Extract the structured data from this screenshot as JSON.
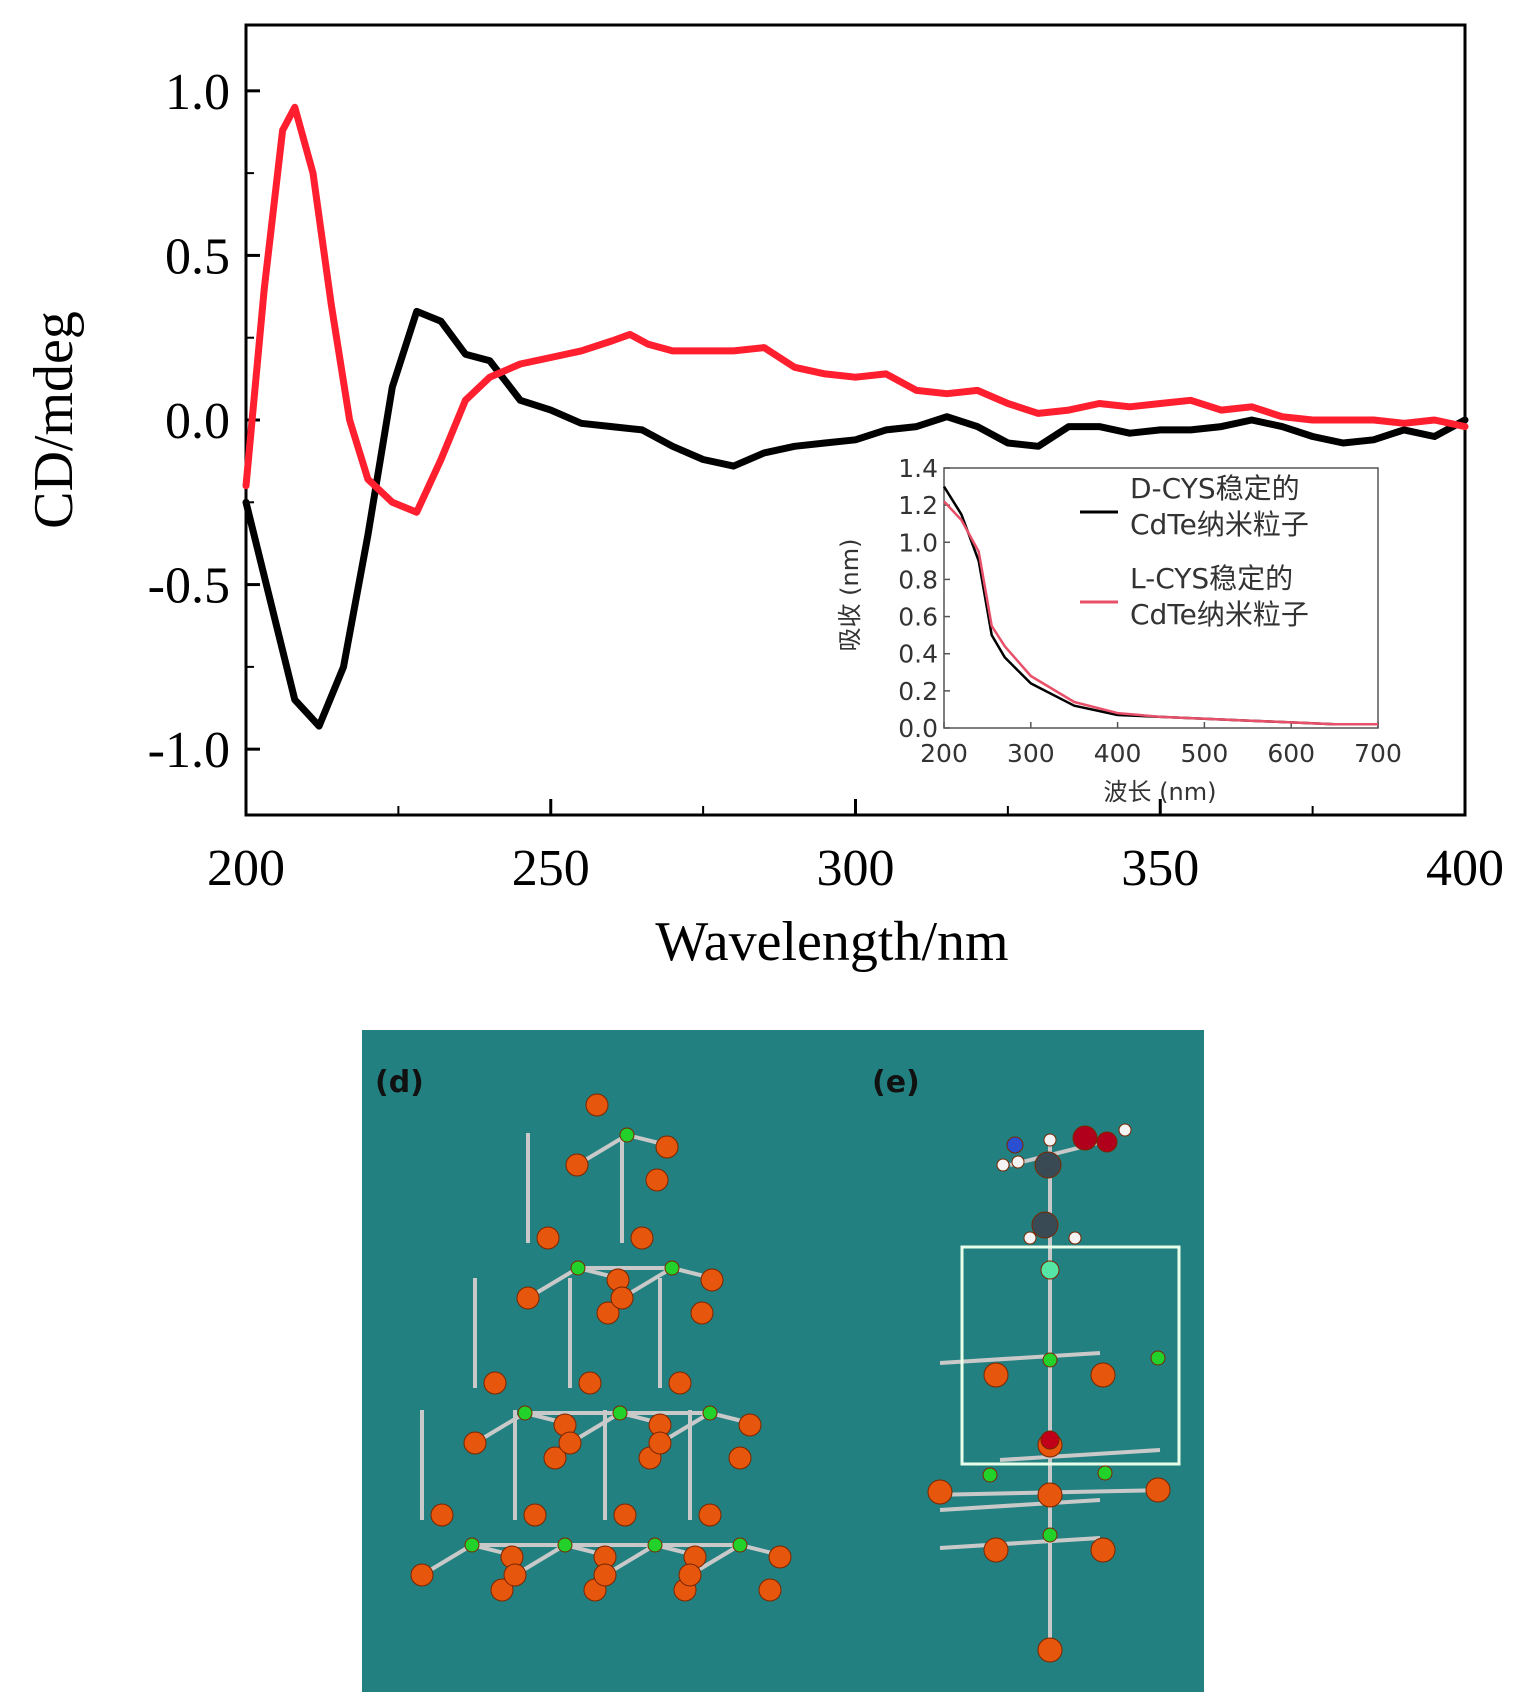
{
  "chart_data": [
    {
      "type": "line",
      "xlabel": "Wavelength/nm",
      "ylabel": "CD/mdeg",
      "xlim": [
        200,
        400
      ],
      "ylim": [
        -1.2,
        1.2
      ],
      "xticks": [
        "200",
        "250",
        "300",
        "350",
        "400"
      ],
      "yticks": [
        "1.0",
        "0.5",
        "0.0",
        "-0.5",
        "-1.0"
      ],
      "grid": false,
      "series": [
        {
          "color": "#000000",
          "x": [
            200,
            204,
            208,
            212,
            216,
            220,
            224,
            228,
            232,
            236,
            240,
            245,
            250,
            255,
            260,
            265,
            270,
            275,
            280,
            285,
            290,
            295,
            300,
            305,
            310,
            315,
            320,
            325,
            330,
            335,
            340,
            345,
            350,
            355,
            360,
            365,
            370,
            375,
            380,
            385,
            390,
            395,
            400
          ],
          "y": [
            -0.25,
            -0.55,
            -0.85,
            -0.93,
            -0.75,
            -0.35,
            0.1,
            0.33,
            0.3,
            0.2,
            0.18,
            0.06,
            0.03,
            -0.01,
            -0.02,
            -0.03,
            -0.08,
            -0.12,
            -0.14,
            -0.1,
            -0.08,
            -0.07,
            -0.06,
            -0.03,
            -0.02,
            0.01,
            -0.02,
            -0.07,
            -0.08,
            -0.02,
            -0.02,
            -0.04,
            -0.03,
            -0.03,
            -0.02,
            0.0,
            -0.02,
            -0.05,
            -0.07,
            -0.06,
            -0.03,
            -0.05,
            0.0
          ]
        },
        {
          "color": "#ff1f2f",
          "x": [
            200,
            203,
            206,
            208,
            211,
            214,
            217,
            220,
            224,
            228,
            232,
            236,
            240,
            245,
            250,
            255,
            260,
            263,
            266,
            270,
            275,
            280,
            285,
            290,
            295,
            300,
            305,
            310,
            315,
            320,
            325,
            330,
            335,
            340,
            345,
            350,
            355,
            360,
            365,
            370,
            375,
            380,
            385,
            390,
            395,
            400
          ],
          "y": [
            -0.2,
            0.4,
            0.88,
            0.95,
            0.75,
            0.35,
            0.0,
            -0.18,
            -0.25,
            -0.28,
            -0.12,
            0.06,
            0.13,
            0.17,
            0.19,
            0.21,
            0.24,
            0.26,
            0.23,
            0.21,
            0.21,
            0.21,
            0.22,
            0.16,
            0.14,
            0.13,
            0.14,
            0.09,
            0.08,
            0.09,
            0.05,
            0.02,
            0.03,
            0.05,
            0.04,
            0.05,
            0.06,
            0.03,
            0.04,
            0.01,
            0.0,
            0.0,
            0.0,
            -0.01,
            0.0,
            -0.02
          ]
        }
      ]
    },
    {
      "type": "line",
      "xlabel": "波长 (nm)",
      "ylabel": "吸收 (nm)",
      "xlim": [
        200,
        700
      ],
      "ylim": [
        0.0,
        1.4
      ],
      "xticks": [
        "200",
        "300",
        "400",
        "500",
        "600",
        "700"
      ],
      "yticks": [
        "1.4",
        "1.2",
        "1.0",
        "0.8",
        "0.6",
        "0.4",
        "0.2",
        "0.0"
      ],
      "legend_position": "top-right",
      "series": [
        {
          "name": "D-CYS稳定的 CdTe纳米粒子",
          "color": "#000000",
          "x": [
            200,
            220,
            240,
            255,
            270,
            300,
            350,
            400,
            450,
            500,
            550,
            600,
            650,
            700
          ],
          "y": [
            1.3,
            1.15,
            0.9,
            0.5,
            0.38,
            0.24,
            0.12,
            0.07,
            0.06,
            0.05,
            0.04,
            0.03,
            0.02,
            0.02
          ]
        },
        {
          "name": "L-CYS稳定的 CdTe纳米粒子",
          "color": "#e8506a",
          "x": [
            200,
            220,
            240,
            255,
            270,
            300,
            350,
            400,
            450,
            500,
            550,
            600,
            650,
            700
          ],
          "y": [
            1.22,
            1.12,
            0.95,
            0.55,
            0.44,
            0.28,
            0.14,
            0.08,
            0.06,
            0.05,
            0.04,
            0.03,
            0.02,
            0.02
          ]
        }
      ]
    }
  ],
  "panels": {
    "d": {
      "label": "(d)"
    },
    "e": {
      "label": "(e)"
    }
  },
  "colors": {
    "panel_bg": "#238080",
    "atom_orange": "#e6560c",
    "atom_green": "#22d12a",
    "bond": "#c9c9c9"
  }
}
